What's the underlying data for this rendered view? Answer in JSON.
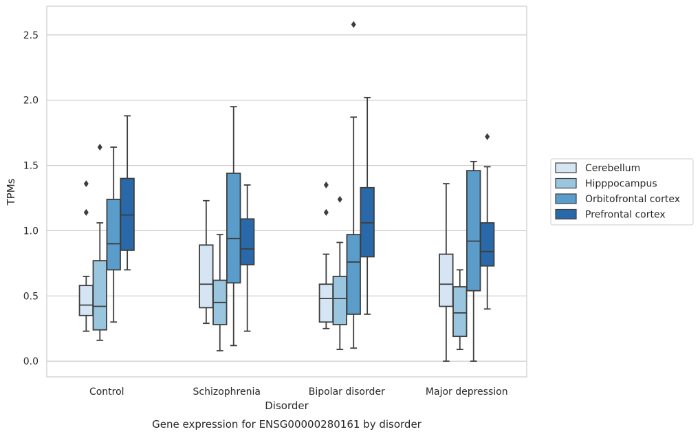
{
  "chart_data": {
    "type": "box",
    "caption": "Gene expression for ENSG00000280161 by disorder",
    "xlabel": "Disorder",
    "ylabel": "TPMs",
    "ylim": [
      -0.12,
      2.72
    ],
    "yticks": [
      "0.0",
      "0.5",
      "1.0",
      "1.5",
      "2.0",
      "2.5"
    ],
    "grid": true,
    "legend_position": "right",
    "categories": [
      "Control",
      "Schizophrenia",
      "Bipolar disorder",
      "Major depression"
    ],
    "series": [
      {
        "name": "Cerebellum",
        "color": "#d6e5f4",
        "boxes": [
          {
            "category": "Control",
            "whisker_low": 0.23,
            "q1": 0.35,
            "median": 0.43,
            "q3": 0.58,
            "whisker_high": 0.65,
            "outliers": [
              1.14,
              1.36
            ]
          },
          {
            "category": "Schizophrenia",
            "whisker_low": 0.29,
            "q1": 0.41,
            "median": 0.59,
            "q3": 0.89,
            "whisker_high": 1.23,
            "outliers": []
          },
          {
            "category": "Bipolar disorder",
            "whisker_low": 0.25,
            "q1": 0.3,
            "median": 0.48,
            "q3": 0.59,
            "whisker_high": 0.82,
            "outliers": [
              1.14,
              1.35
            ]
          },
          {
            "category": "Major depression",
            "whisker_low": 0.0,
            "q1": 0.42,
            "median": 0.59,
            "q3": 0.82,
            "whisker_high": 1.36,
            "outliers": []
          }
        ]
      },
      {
        "name": "Hipppocampus",
        "color": "#9ac5de",
        "boxes": [
          {
            "category": "Control",
            "whisker_low": 0.16,
            "q1": 0.24,
            "median": 0.42,
            "q3": 0.77,
            "whisker_high": 1.06,
            "outliers": [
              1.64
            ]
          },
          {
            "category": "Schizophrenia",
            "whisker_low": 0.08,
            "q1": 0.28,
            "median": 0.45,
            "q3": 0.62,
            "whisker_high": 0.97,
            "outliers": []
          },
          {
            "category": "Bipolar disorder",
            "whisker_low": 0.09,
            "q1": 0.28,
            "median": 0.48,
            "q3": 0.65,
            "whisker_high": 0.91,
            "outliers": [
              1.24
            ]
          },
          {
            "category": "Major depression",
            "whisker_low": 0.09,
            "q1": 0.19,
            "median": 0.37,
            "q3": 0.57,
            "whisker_high": 0.7,
            "outliers": []
          }
        ]
      },
      {
        "name": "Orbitofrontal cortex",
        "color": "#5a9dca",
        "boxes": [
          {
            "category": "Control",
            "whisker_low": 0.3,
            "q1": 0.7,
            "median": 0.9,
            "q3": 1.24,
            "whisker_high": 1.64,
            "outliers": []
          },
          {
            "category": "Schizophrenia",
            "whisker_low": 0.12,
            "q1": 0.6,
            "median": 0.94,
            "q3": 1.44,
            "whisker_high": 1.95,
            "outliers": []
          },
          {
            "category": "Bipolar disorder",
            "whisker_low": 0.1,
            "q1": 0.36,
            "median": 0.76,
            "q3": 0.97,
            "whisker_high": 1.87,
            "outliers": [
              2.58
            ]
          },
          {
            "category": "Major depression",
            "whisker_low": 0.0,
            "q1": 0.54,
            "median": 0.92,
            "q3": 1.46,
            "whisker_high": 1.53,
            "outliers": []
          }
        ]
      },
      {
        "name": "Prefrontal cortex",
        "color": "#2a69a9",
        "boxes": [
          {
            "category": "Control",
            "whisker_low": 0.7,
            "q1": 0.85,
            "median": 1.12,
            "q3": 1.4,
            "whisker_high": 1.88,
            "outliers": []
          },
          {
            "category": "Schizophrenia",
            "whisker_low": 0.23,
            "q1": 0.74,
            "median": 0.86,
            "q3": 1.09,
            "whisker_high": 1.35,
            "outliers": []
          },
          {
            "category": "Bipolar disorder",
            "whisker_low": 0.36,
            "q1": 0.8,
            "median": 1.06,
            "q3": 1.33,
            "whisker_high": 2.02,
            "outliers": []
          },
          {
            "category": "Major depression",
            "whisker_low": 0.4,
            "q1": 0.73,
            "median": 0.84,
            "q3": 1.06,
            "whisker_high": 1.49,
            "outliers": [
              1.72
            ]
          }
        ]
      }
    ]
  }
}
